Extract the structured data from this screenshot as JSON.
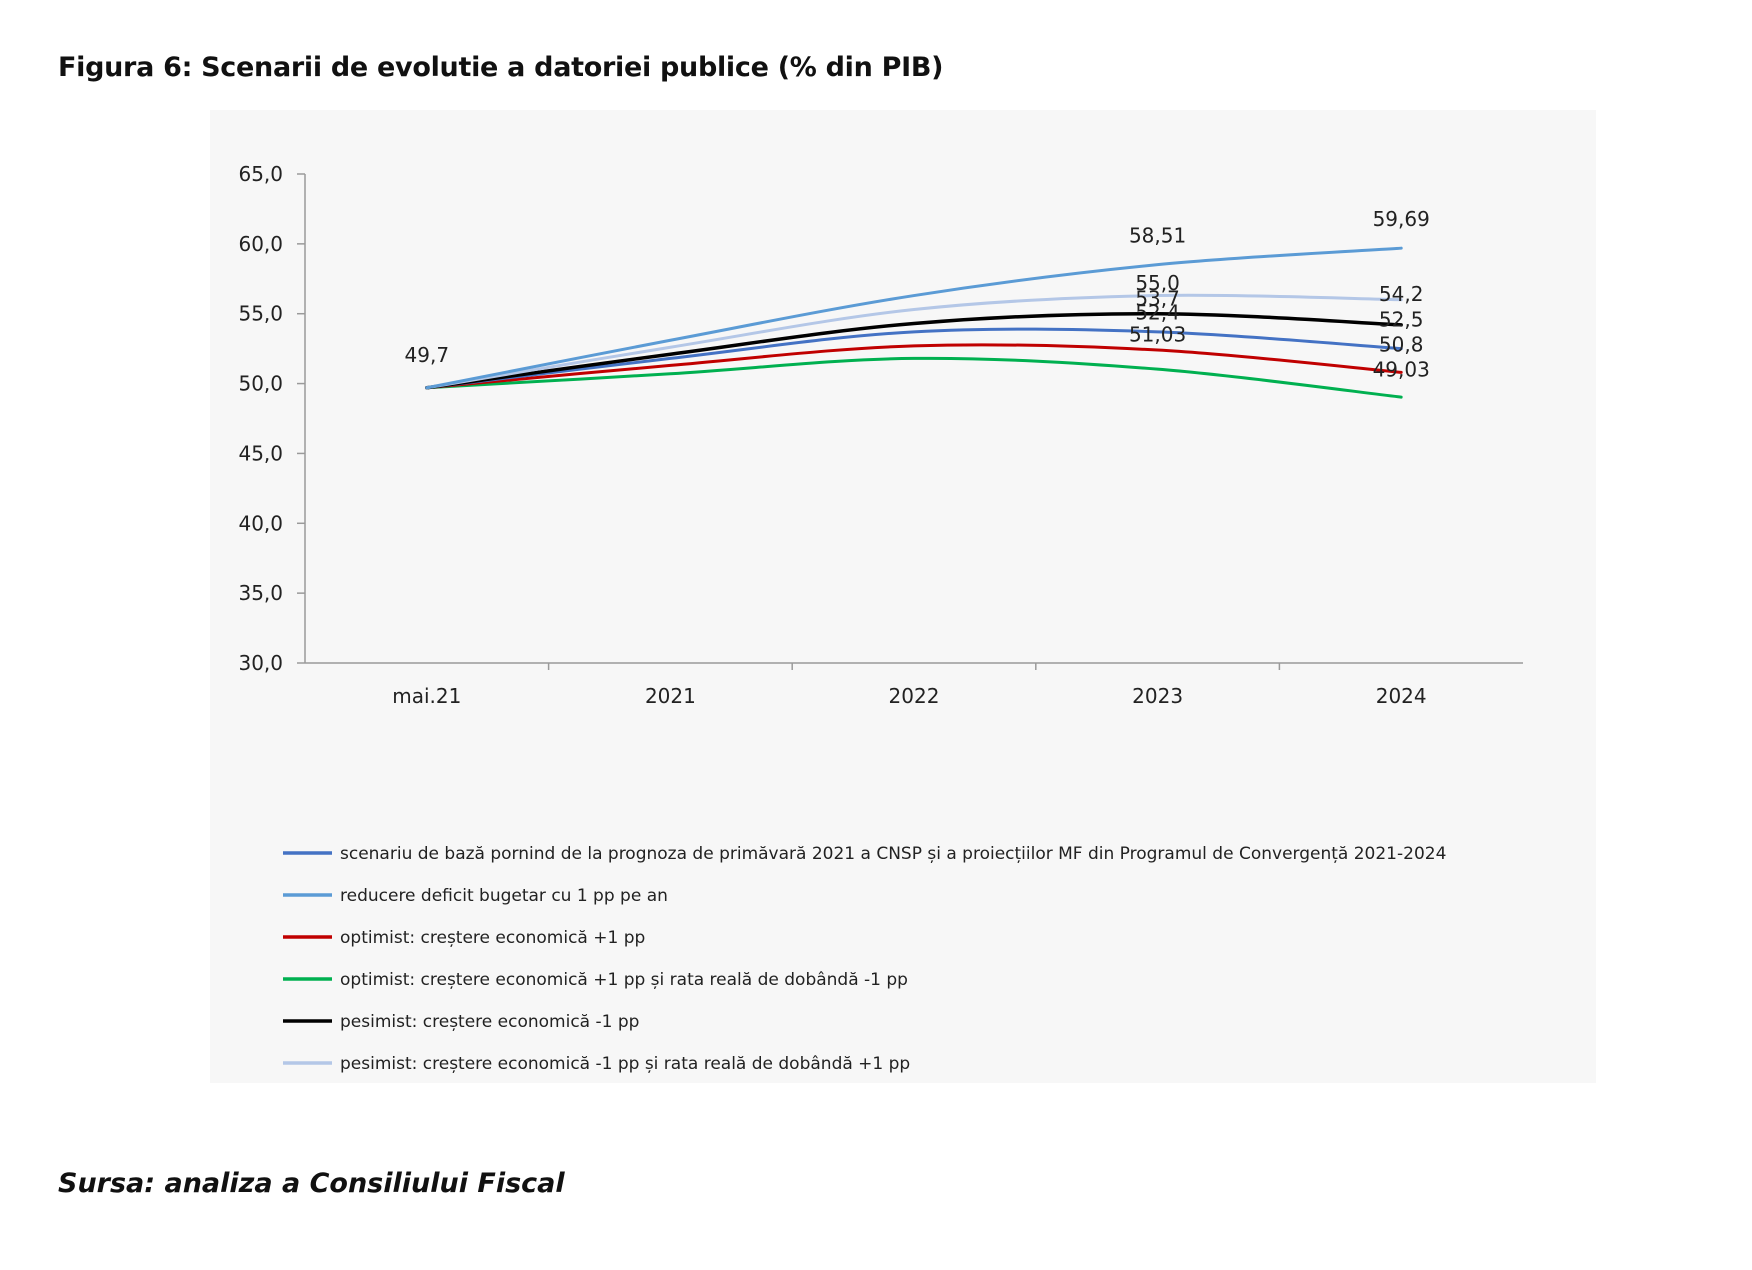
{
  "figure": {
    "title": "Figura 6: Scenarii de evolutie a datoriei publice (% din PIB)",
    "source": "Sursa: analiza a Consiliului Fiscal"
  },
  "chart_data": {
    "type": "line",
    "title": "",
    "xlabel": "",
    "ylabel": "",
    "categories": [
      "mai.21",
      "2021",
      "2022",
      "2023",
      "2024"
    ],
    "ylim": [
      30,
      65
    ],
    "yticks": [
      30,
      35,
      40,
      45,
      50,
      55,
      60,
      65
    ],
    "ytick_labels": [
      "30,0",
      "35,0",
      "40,0",
      "45,0",
      "50,0",
      "55,0",
      "60,0",
      "65,0"
    ],
    "grid": false,
    "legend_position": "bottom",
    "series": [
      {
        "name": "scenariu de bază pornind de la prognoza de primăvară 2021 a CNSP și a proiecțiilor MF din Programul de Convergență 2021-2024",
        "color": "#4472c4",
        "values": [
          49.7,
          51.8,
          53.7,
          53.7,
          52.5
        ]
      },
      {
        "name": "reducere deficit bugetar cu 1 pp pe an",
        "color": "#5b9bd5",
        "values": [
          49.7,
          53.1,
          56.3,
          58.51,
          59.69
        ]
      },
      {
        "name": "optimist: creștere economică +1 pp",
        "color": "#c00000",
        "values": [
          49.7,
          51.3,
          52.7,
          52.4,
          50.8
        ]
      },
      {
        "name": "optimist: creștere economică +1 pp și rata reală de dobândă -1 pp",
        "color": "#00b050",
        "values": [
          49.7,
          50.7,
          51.8,
          51.03,
          49.03
        ]
      },
      {
        "name": "pesimist: creștere economică -1 pp",
        "color": "#000000",
        "values": [
          49.7,
          52.1,
          54.3,
          55.0,
          54.2
        ]
      },
      {
        "name": "pesimist: creștere economică -1 pp și rata reală de dobândă +1 pp",
        "color": "#b4c7e7",
        "values": [
          49.7,
          52.6,
          55.3,
          56.3,
          56.0
        ]
      }
    ],
    "annotations": [
      {
        "text": "49,7",
        "category": "mai.21",
        "value": 49.7
      },
      {
        "text": "58,51",
        "category": "2023",
        "value": 58.51
      },
      {
        "text": "55,0",
        "category": "2023",
        "value": 55.0
      },
      {
        "text": "53,7",
        "category": "2023",
        "value": 53.7
      },
      {
        "text": "52,4",
        "category": "2023",
        "value": 52.4
      },
      {
        "text": "51,03",
        "category": "2023",
        "value": 51.03
      },
      {
        "text": "59,69",
        "category": "2024",
        "value": 59.69
      },
      {
        "text": "54,2",
        "category": "2024",
        "value": 54.2
      },
      {
        "text": "52,5",
        "category": "2024",
        "value": 52.5
      },
      {
        "text": "50,8",
        "category": "2024",
        "value": 50.8
      },
      {
        "text": "49,03",
        "category": "2024",
        "value": 49.03
      }
    ]
  }
}
